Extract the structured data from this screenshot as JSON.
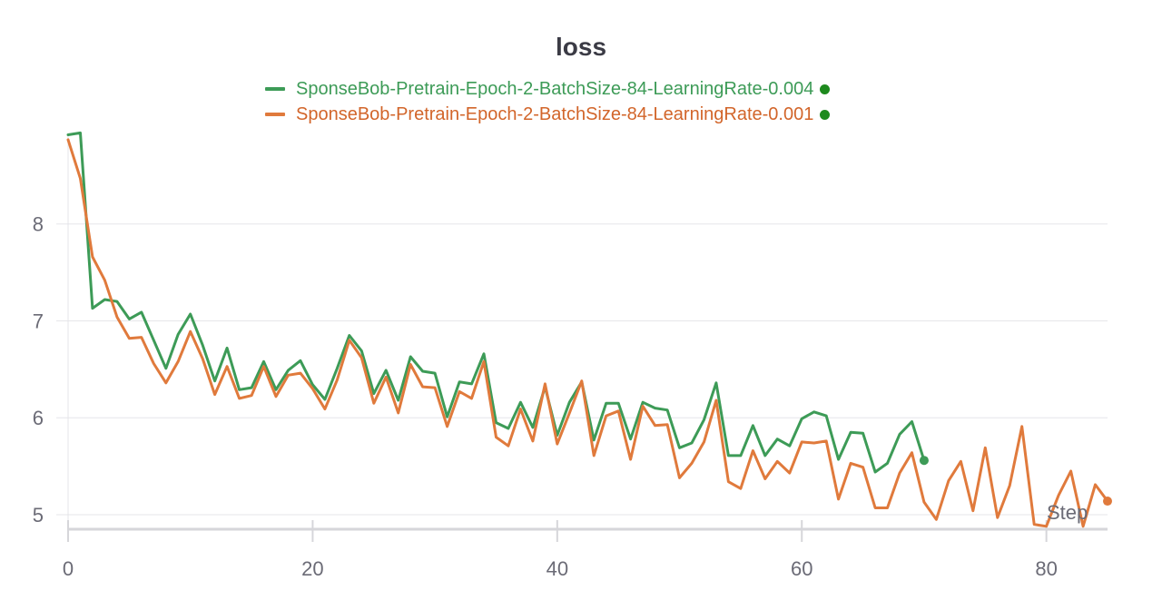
{
  "chart_data": {
    "type": "line",
    "title": "loss",
    "xlabel": "Step",
    "ylabel": "",
    "xlim": [
      0,
      85
    ],
    "ylim": [
      4.85,
      9.0
    ],
    "xticks": [
      0,
      20,
      40,
      60,
      80
    ],
    "yticks": [
      5,
      6,
      7,
      8
    ],
    "grid": true,
    "legend_position": "top-center",
    "series": [
      {
        "name": "SponseBob-Pretrain-Epoch-2-BatchSize-84-LearningRate-0.004",
        "color": "#3d9b57",
        "x": [
          0,
          1,
          2,
          3,
          4,
          5,
          6,
          7,
          8,
          9,
          10,
          11,
          12,
          13,
          14,
          15,
          16,
          17,
          18,
          19,
          20,
          21,
          22,
          23,
          24,
          25,
          26,
          27,
          28,
          29,
          30,
          31,
          32,
          33,
          34,
          35,
          36,
          37,
          38,
          39,
          40,
          41,
          42,
          43,
          44,
          45,
          46,
          47,
          48,
          49,
          50,
          51,
          52,
          53,
          54,
          55,
          56,
          57,
          58,
          59,
          60,
          61,
          62,
          63,
          64,
          65,
          66,
          67,
          68,
          69,
          70
        ],
        "y": [
          8.92,
          8.94,
          7.13,
          7.22,
          7.2,
          7.02,
          7.09,
          6.8,
          6.51,
          6.86,
          7.07,
          6.75,
          6.38,
          6.72,
          6.29,
          6.31,
          6.58,
          6.29,
          6.49,
          6.59,
          6.34,
          6.19,
          6.51,
          6.85,
          6.69,
          6.25,
          6.49,
          6.18,
          6.63,
          6.48,
          6.46,
          6.01,
          6.37,
          6.35,
          6.66,
          5.95,
          5.89,
          6.16,
          5.9,
          6.32,
          5.82,
          6.16,
          6.37,
          5.77,
          6.15,
          6.15,
          5.78,
          6.16,
          6.1,
          6.08,
          5.69,
          5.74,
          5.98,
          6.36,
          5.61,
          5.61,
          5.92,
          5.61,
          5.78,
          5.71,
          5.99,
          6.06,
          6.02,
          5.57,
          5.85,
          5.84,
          5.44,
          5.53,
          5.83,
          5.96,
          5.56
        ]
      },
      {
        "name": "SponseBob-Pretrain-Epoch-2-BatchSize-84-LearningRate-0.001",
        "color": "#e07a3c",
        "x": [
          0,
          1,
          2,
          3,
          4,
          5,
          6,
          7,
          8,
          9,
          10,
          11,
          12,
          13,
          14,
          15,
          16,
          17,
          18,
          19,
          20,
          21,
          22,
          23,
          24,
          25,
          26,
          27,
          28,
          29,
          30,
          31,
          32,
          33,
          34,
          35,
          36,
          37,
          38,
          39,
          40,
          41,
          42,
          43,
          44,
          45,
          46,
          47,
          48,
          49,
          50,
          51,
          52,
          53,
          54,
          55,
          56,
          57,
          58,
          59,
          60,
          61,
          62,
          63,
          64,
          65,
          66,
          67,
          68,
          69,
          70,
          71,
          72,
          73,
          74,
          75,
          76,
          77,
          78,
          79,
          80,
          81,
          82,
          83,
          84,
          85
        ],
        "y": [
          8.87,
          8.47,
          7.66,
          7.42,
          7.04,
          6.82,
          6.83,
          6.56,
          6.36,
          6.58,
          6.89,
          6.61,
          6.24,
          6.53,
          6.2,
          6.23,
          6.53,
          6.22,
          6.44,
          6.46,
          6.3,
          6.09,
          6.39,
          6.8,
          6.62,
          6.15,
          6.42,
          6.05,
          6.55,
          6.32,
          6.31,
          5.91,
          6.27,
          6.2,
          6.58,
          5.8,
          5.71,
          6.09,
          5.76,
          6.35,
          5.73,
          6.05,
          6.38,
          5.61,
          6.02,
          6.07,
          5.57,
          6.12,
          5.92,
          5.93,
          5.38,
          5.53,
          5.75,
          6.18,
          5.34,
          5.27,
          5.66,
          5.37,
          5.55,
          5.43,
          5.75,
          5.74,
          5.76,
          5.16,
          5.53,
          5.49,
          5.07,
          5.07,
          5.43,
          5.64,
          5.13,
          4.95,
          5.35,
          5.55,
          5.04,
          5.69,
          4.97,
          5.3,
          5.91,
          4.9,
          4.88,
          5.2,
          5.45,
          4.88,
          5.31,
          5.14
        ]
      }
    ]
  }
}
